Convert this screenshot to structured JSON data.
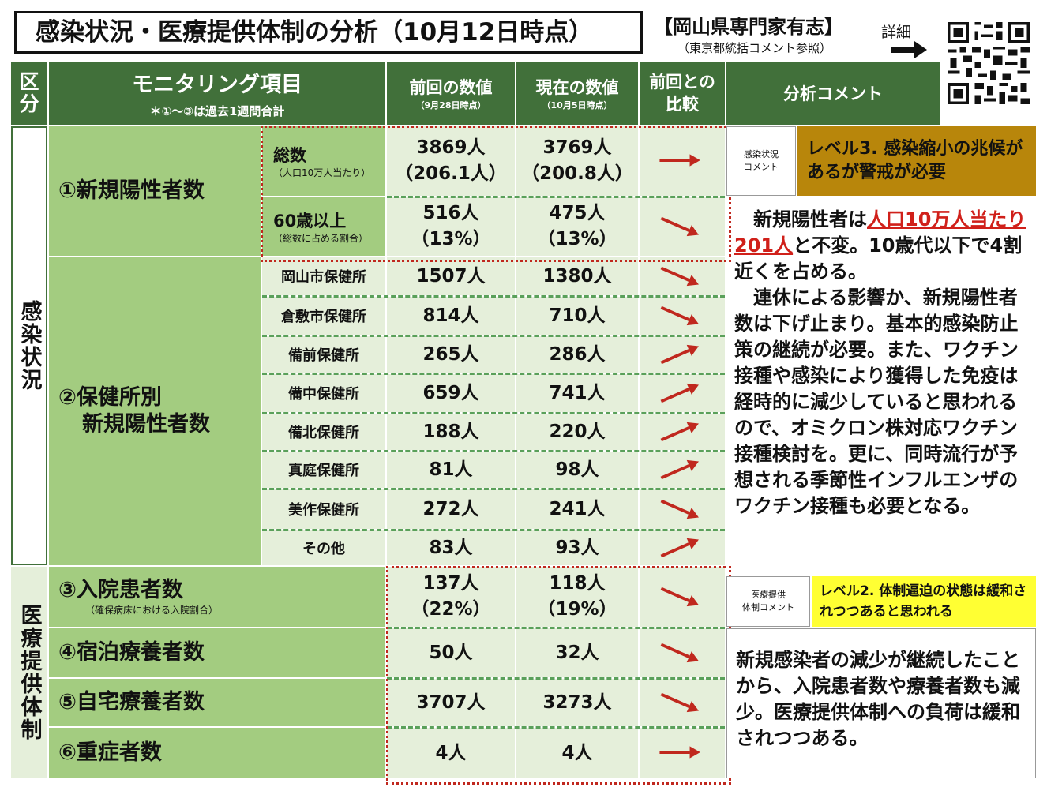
{
  "header": {
    "title": "感染状況・医療提供体制の分析（10月12日時点）",
    "org": "【岡山県専門家有志】",
    "org_note": "（東京都統括コメント参照）",
    "detail_label": "詳細",
    "detail_arrow": "➡"
  },
  "columns": {
    "category": "区分",
    "item": "モニタリング項目",
    "item_note": "＊①～③は過去1週間合計",
    "prev": "前回の数値",
    "prev_note": "（9月28日時点）",
    "curr": "現在の数値",
    "curr_note": "（10月5日時点）",
    "compare": "前回との比較",
    "comment": "分析コメント"
  },
  "sections": {
    "infection": "感染状況",
    "medical": "医療提供体制"
  },
  "rows": {
    "r1_label": "①新規陽性者数",
    "r1a_label": "総数",
    "r1a_note": "（人口10万人当たり）",
    "r1a_prev": "3869人",
    "r1a_prev2": "（206.1人）",
    "r1a_curr": "3769人",
    "r1a_curr2": "（200.8人）",
    "r1b_label": "60歳以上",
    "r1b_note": "（総数に占める割合）",
    "r1b_prev": "516人",
    "r1b_prev2": "（13%）",
    "r1b_curr": "475人",
    "r1b_curr2": "（13%）",
    "r2_label1": "②保健所別",
    "r2_label2": "新規陽性者数",
    "offices": [
      {
        "name": "岡山市保健所",
        "prev": "1507人",
        "curr": "1380人",
        "trend": "down"
      },
      {
        "name": "倉敷市保健所",
        "prev": "814人",
        "curr": "710人",
        "trend": "down"
      },
      {
        "name": "備前保健所",
        "prev": "265人",
        "curr": "286人",
        "trend": "up"
      },
      {
        "name": "備中保健所",
        "prev": "659人",
        "curr": "741人",
        "trend": "up"
      },
      {
        "name": "備北保健所",
        "prev": "188人",
        "curr": "220人",
        "trend": "up"
      },
      {
        "name": "真庭保健所",
        "prev": "81人",
        "curr": "98人",
        "trend": "up"
      },
      {
        "name": "美作保健所",
        "prev": "272人",
        "curr": "241人",
        "trend": "down"
      },
      {
        "name": "その他",
        "prev": "83人",
        "curr": "93人",
        "trend": "up"
      }
    ],
    "r3_label": "③入院患者数",
    "r3_note": "（確保病床における入院割合）",
    "r3_prev": "137人",
    "r3_prev2": "（22%）",
    "r3_curr": "118人",
    "r3_curr2": "（19%）",
    "r4_label": "④宿泊療養者数",
    "r4_prev": "50人",
    "r4_curr": "32人",
    "r5_label": "⑤自宅療養者数",
    "r5_prev": "3707人",
    "r5_curr": "3273人",
    "r6_label": "⑥重症者数",
    "r6_prev": "4人",
    "r6_curr": "4人"
  },
  "comments": {
    "infection_tag1": "感染状況",
    "infection_tag2": "コメント",
    "infection_level": "レベル3. 感染縮小の兆候があるが警戒が必要",
    "infection_level_color": "#b8860b",
    "infection_p1_pre": "新規陽性者は",
    "infection_p1_red": "人口10万人当たり201人",
    "infection_p1_post": "と不変。10歳代以下で4割近くを占める。",
    "infection_p2": "連休による影響か、新規陽性者数は下げ止まり。基本的感染防止策の継続が必要。また、ワクチン接種や感染により獲得した免疫は経時的に減少していると思われるので、オミクロン株対応ワクチン接種検討を。更に、同時流行が予想される季節性インフルエンザのワクチン接種も必要となる。",
    "medical_tag1": "医療提供",
    "medical_tag2": "体制コメント",
    "medical_level": "レベル2. 体制逼迫の状態は緩和されつつあると思われる",
    "medical_level_color": "#ffff33",
    "medical_text": "新規感染者の減少が継続したことから、入院患者数や療養者数も減少。医療提供体制への負荷は緩和されつつある。"
  },
  "trends": {
    "r1a": "flat",
    "r1b": "down",
    "r3": "down",
    "r4": "down",
    "r5": "down",
    "r6": "flat"
  },
  "colors": {
    "header_green": "#41703a",
    "mid_green": "#a3cc80",
    "light_green": "#e5efda",
    "arrow_red": "#c0281e"
  },
  "icons": {
    "qr": "qr-code-icon",
    "arrow": "right-arrow-icon"
  }
}
